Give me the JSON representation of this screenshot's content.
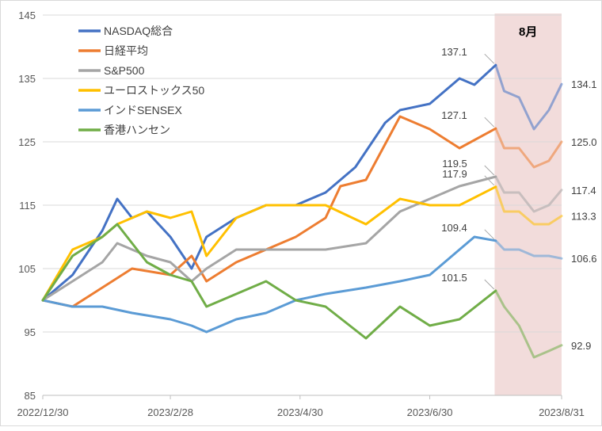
{
  "chart_data": {
    "type": "line",
    "title": "",
    "xlabel": "",
    "ylabel": "",
    "ylim": [
      85,
      145
    ],
    "y_ticks": [
      85,
      95,
      105,
      115,
      125,
      135,
      145
    ],
    "x_ticks": [
      "2022/12/30",
      "2023/2/28",
      "2023/4/30",
      "2023/6/30",
      "2023/8/31"
    ],
    "grid": "horizontal",
    "legend_position": "top-left",
    "highlight": {
      "label": "8月",
      "from": "2023/8/1",
      "to": "2023/8/31",
      "color": "#f2dcdb"
    },
    "series": [
      {
        "name": "NASDAQ総合",
        "color": "#4472c4",
        "points": [
          [
            "2022/12/30",
            100
          ],
          [
            "2023/1/13",
            104
          ],
          [
            "2023/1/27",
            111
          ],
          [
            "2023/2/3",
            116
          ],
          [
            "2023/2/10",
            113
          ],
          [
            "2023/2/17",
            114
          ],
          [
            "2023/2/28",
            110
          ],
          [
            "2023/3/10",
            105
          ],
          [
            "2023/3/17",
            110
          ],
          [
            "2023/3/31",
            113
          ],
          [
            "2023/4/14",
            115
          ],
          [
            "2023/4/28",
            115
          ],
          [
            "2023/5/12",
            117
          ],
          [
            "2023/5/26",
            121
          ],
          [
            "2023/6/9",
            128
          ],
          [
            "2023/6/16",
            130
          ],
          [
            "2023/6/30",
            131
          ],
          [
            "2023/7/14",
            135
          ],
          [
            "2023/7/21",
            134
          ],
          [
            "2023/7/31",
            137.1
          ],
          [
            "2023/8/4",
            133
          ],
          [
            "2023/8/11",
            132
          ],
          [
            "2023/8/18",
            127
          ],
          [
            "2023/8/25",
            130
          ],
          [
            "2023/8/31",
            134.1
          ]
        ]
      },
      {
        "name": "日経平均",
        "color": "#ed7d31",
        "points": [
          [
            "2022/12/30",
            100
          ],
          [
            "2023/1/13",
            99
          ],
          [
            "2023/1/27",
            102
          ],
          [
            "2023/2/10",
            105
          ],
          [
            "2023/2/28",
            104
          ],
          [
            "2023/3/10",
            107
          ],
          [
            "2023/3/17",
            103
          ],
          [
            "2023/3/31",
            106
          ],
          [
            "2023/4/14",
            108
          ],
          [
            "2023/4/28",
            110
          ],
          [
            "2023/5/12",
            113
          ],
          [
            "2023/5/19",
            118
          ],
          [
            "2023/5/31",
            119
          ],
          [
            "2023/6/16",
            129
          ],
          [
            "2023/6/30",
            127
          ],
          [
            "2023/7/14",
            124
          ],
          [
            "2023/7/31",
            127.1
          ],
          [
            "2023/8/4",
            124
          ],
          [
            "2023/8/11",
            124
          ],
          [
            "2023/8/18",
            121
          ],
          [
            "2023/8/25",
            122
          ],
          [
            "2023/8/31",
            125.0
          ]
        ]
      },
      {
        "name": "S&P500",
        "color": "#a5a5a5",
        "points": [
          [
            "2022/12/30",
            100
          ],
          [
            "2023/1/13",
            103
          ],
          [
            "2023/1/27",
            106
          ],
          [
            "2023/2/3",
            109
          ],
          [
            "2023/2/17",
            107
          ],
          [
            "2023/2/28",
            106
          ],
          [
            "2023/3/10",
            103
          ],
          [
            "2023/3/17",
            105
          ],
          [
            "2023/3/31",
            108
          ],
          [
            "2023/4/14",
            108
          ],
          [
            "2023/4/28",
            108
          ],
          [
            "2023/5/12",
            108
          ],
          [
            "2023/5/31",
            109
          ],
          [
            "2023/6/16",
            114
          ],
          [
            "2023/6/30",
            116
          ],
          [
            "2023/7/14",
            118
          ],
          [
            "2023/7/31",
            119.5
          ],
          [
            "2023/8/4",
            117
          ],
          [
            "2023/8/11",
            117
          ],
          [
            "2023/8/18",
            114
          ],
          [
            "2023/8/25",
            115
          ],
          [
            "2023/8/31",
            117.4
          ]
        ]
      },
      {
        "name": "ユーロストックス50",
        "color": "#ffc000",
        "points": [
          [
            "2022/12/30",
            100
          ],
          [
            "2023/1/13",
            108
          ],
          [
            "2023/1/27",
            110
          ],
          [
            "2023/2/3",
            112
          ],
          [
            "2023/2/17",
            114
          ],
          [
            "2023/2/28",
            113
          ],
          [
            "2023/3/10",
            114
          ],
          [
            "2023/3/17",
            107
          ],
          [
            "2023/3/31",
            113
          ],
          [
            "2023/4/14",
            115
          ],
          [
            "2023/4/28",
            115
          ],
          [
            "2023/5/12",
            115
          ],
          [
            "2023/5/31",
            112
          ],
          [
            "2023/6/16",
            116
          ],
          [
            "2023/6/30",
            115
          ],
          [
            "2023/7/14",
            115
          ],
          [
            "2023/7/31",
            117.9
          ],
          [
            "2023/8/4",
            114
          ],
          [
            "2023/8/11",
            114
          ],
          [
            "2023/8/18",
            112
          ],
          [
            "2023/8/25",
            112
          ],
          [
            "2023/8/31",
            113.3
          ]
        ]
      },
      {
        "name": "インドSENSEX",
        "color": "#5b9bd5",
        "points": [
          [
            "2022/12/30",
            100
          ],
          [
            "2023/1/13",
            99
          ],
          [
            "2023/1/27",
            99
          ],
          [
            "2023/2/10",
            98
          ],
          [
            "2023/2/28",
            97
          ],
          [
            "2023/3/10",
            96
          ],
          [
            "2023/3/17",
            95
          ],
          [
            "2023/3/31",
            97
          ],
          [
            "2023/4/14",
            98
          ],
          [
            "2023/4/28",
            100
          ],
          [
            "2023/5/12",
            101
          ],
          [
            "2023/5/31",
            102
          ],
          [
            "2023/6/16",
            103
          ],
          [
            "2023/6/30",
            104
          ],
          [
            "2023/7/14",
            108
          ],
          [
            "2023/7/21",
            110
          ],
          [
            "2023/7/31",
            109.4
          ],
          [
            "2023/8/4",
            108
          ],
          [
            "2023/8/11",
            108
          ],
          [
            "2023/8/18",
            107
          ],
          [
            "2023/8/25",
            107
          ],
          [
            "2023/8/31",
            106.6
          ]
        ]
      },
      {
        "name": "香港ハンセン",
        "color": "#70ad47",
        "points": [
          [
            "2022/12/30",
            100
          ],
          [
            "2023/1/13",
            107
          ],
          [
            "2023/1/27",
            110
          ],
          [
            "2023/2/3",
            112
          ],
          [
            "2023/2/17",
            106
          ],
          [
            "2023/2/28",
            104
          ],
          [
            "2023/3/10",
            103
          ],
          [
            "2023/3/17",
            99
          ],
          [
            "2023/3/31",
            101
          ],
          [
            "2023/4/14",
            103
          ],
          [
            "2023/4/28",
            100
          ],
          [
            "2023/5/12",
            99
          ],
          [
            "2023/5/31",
            94
          ],
          [
            "2023/6/16",
            99
          ],
          [
            "2023/6/30",
            96
          ],
          [
            "2023/7/14",
            97
          ],
          [
            "2023/7/31",
            101.5
          ],
          [
            "2023/8/4",
            99
          ],
          [
            "2023/8/11",
            96
          ],
          [
            "2023/8/18",
            91
          ],
          [
            "2023/8/25",
            92
          ],
          [
            "2023/8/31",
            92.9
          ]
        ]
      }
    ],
    "data_labels": [
      {
        "series": "NASDAQ総合",
        "date": "2023/7/31",
        "text": "137.1"
      },
      {
        "series": "NASDAQ総合",
        "date": "2023/8/31",
        "text": "134.1"
      },
      {
        "series": "日経平均",
        "date": "2023/7/31",
        "text": "127.1"
      },
      {
        "series": "日経平均",
        "date": "2023/8/31",
        "text": "125.0"
      },
      {
        "series": "S&P500",
        "date": "2023/7/31",
        "text": "119.5"
      },
      {
        "series": "S&P500",
        "date": "2023/8/31",
        "text": "117.4"
      },
      {
        "series": "ユーロストックス50",
        "date": "2023/7/31",
        "text": "117.9"
      },
      {
        "series": "ユーロストックス50",
        "date": "2023/8/31",
        "text": "113.3"
      },
      {
        "series": "インドSENSEX",
        "date": "2023/7/31",
        "text": "109.4"
      },
      {
        "series": "インドSENSEX",
        "date": "2023/8/31",
        "text": "106.6"
      },
      {
        "series": "香港ハンセン",
        "date": "2023/7/31",
        "text": "101.5"
      },
      {
        "series": "香港ハンセン",
        "date": "2023/8/31",
        "text": "92.9"
      }
    ]
  }
}
